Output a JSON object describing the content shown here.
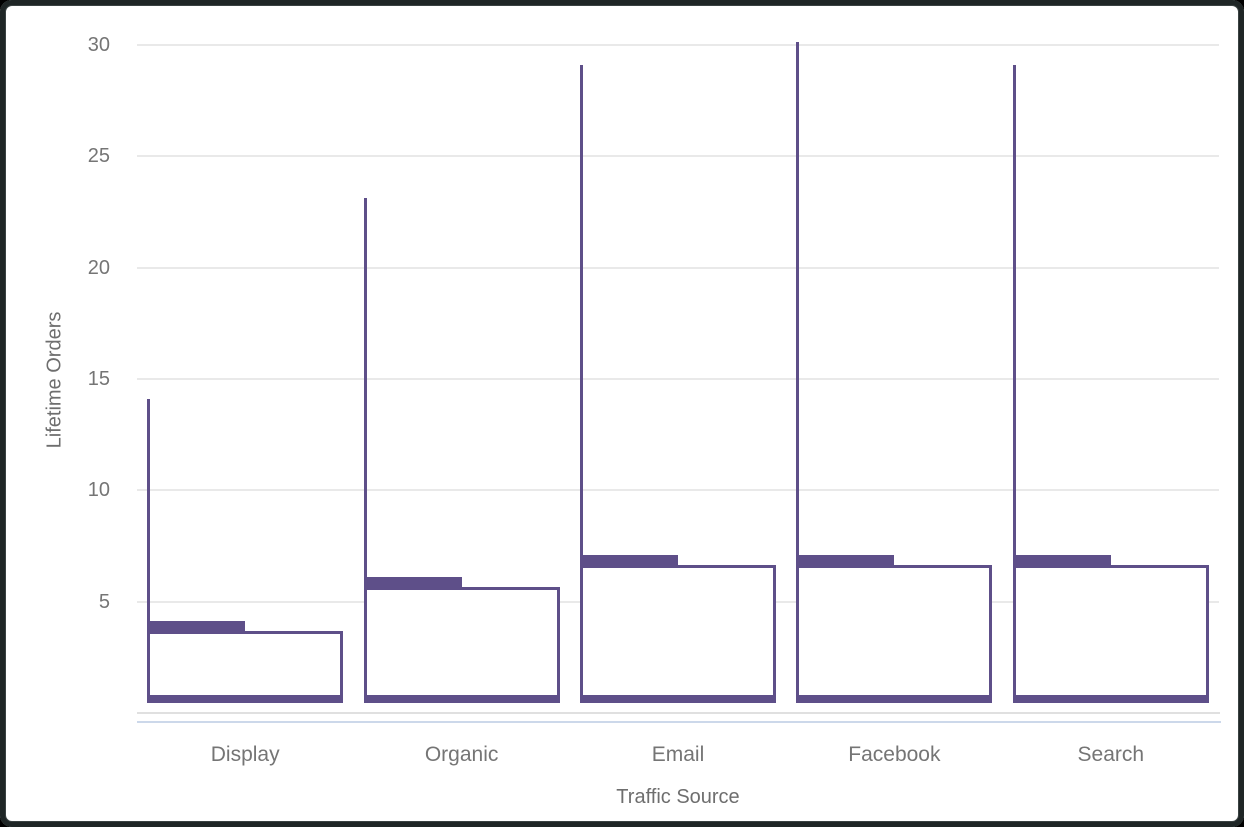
{
  "chart_data": {
    "type": "boxplot",
    "title": "",
    "xlabel": "Traffic Source",
    "ylabel": "Lifetime Orders",
    "categories": [
      "Display",
      "Organic",
      "Email",
      "Facebook",
      "Search"
    ],
    "series": [
      {
        "name": "Display",
        "min": 1,
        "q1": 2,
        "median": 3,
        "q3": 5,
        "max": 14
      },
      {
        "name": "Organic",
        "min": 1,
        "q1": 2,
        "median": 4,
        "q3": 7,
        "max": 23
      },
      {
        "name": "Email",
        "min": 1,
        "q1": 4,
        "median": 7,
        "q3": 10,
        "max": 29
      },
      {
        "name": "Facebook",
        "min": 1,
        "q1": 3,
        "median": 6,
        "q3": 9,
        "max": 30
      },
      {
        "name": "Search",
        "min": 1,
        "q1": 3,
        "median": 6,
        "q3": 9,
        "max": 29
      }
    ],
    "yticks": [
      5,
      10,
      15,
      20,
      25,
      30
    ],
    "ylim": [
      0,
      31.5
    ],
    "grid": true,
    "legend": false,
    "colors": {
      "box_stroke": "#5E4F89",
      "gridline": "#e9e9e9",
      "axis_line": "#e0e0e0",
      "accent_line": "#ccd8ea",
      "tick_text": "#757575",
      "title_text": "#6e6e6e",
      "plot_background": "#ffffff",
      "frame_border": "#1f2626",
      "page_background": "#000000"
    }
  }
}
